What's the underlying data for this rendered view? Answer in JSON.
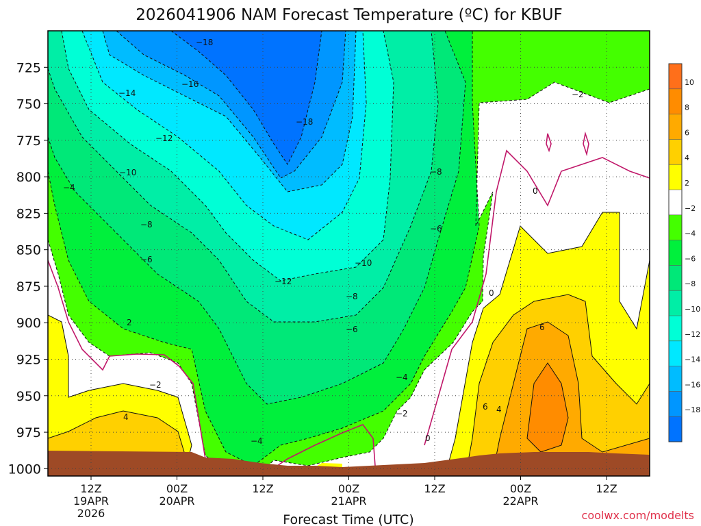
{
  "chart_data": {
    "type": "contour",
    "title": "2026041906 NAM Forecast Temperature (ºC) for KBUF",
    "xlabel": "Forecast Time (UTC)",
    "ylabel": "",
    "x_ticks": [
      {
        "label": "12Z",
        "sub": [
          "19APR",
          "2026"
        ]
      },
      {
        "label": "00Z",
        "sub": [
          "20APR"
        ]
      },
      {
        "label": "12Z",
        "sub": []
      },
      {
        "label": "00Z",
        "sub": [
          "21APR"
        ]
      },
      {
        "label": "12Z",
        "sub": []
      },
      {
        "label": "00Z",
        "sub": [
          "22APR"
        ]
      },
      {
        "label": "12Z",
        "sub": []
      }
    ],
    "y_ticks": [
      "725",
      "750",
      "775",
      "800",
      "825",
      "850",
      "875",
      "900",
      "925",
      "950",
      "975",
      "1000"
    ],
    "y_values": [
      725,
      750,
      775,
      800,
      825,
      850,
      875,
      900,
      925,
      950,
      975,
      1000
    ],
    "ylim": [
      700,
      1005
    ],
    "grid": true,
    "colorbar": {
      "ticks": [
        "10",
        "8",
        "6",
        "4",
        "2",
        "−2",
        "−4",
        "−6",
        "−8",
        "−10",
        "−12",
        "−14",
        "−16",
        "−18"
      ],
      "levels": [
        {
          "lo": 10,
          "hi": 12,
          "color": "#ff6f1a"
        },
        {
          "lo": 8,
          "hi": 10,
          "color": "#ff8c00"
        },
        {
          "lo": 6,
          "hi": 8,
          "color": "#ffaa00"
        },
        {
          "lo": 4,
          "hi": 6,
          "color": "#ffd000"
        },
        {
          "lo": 2,
          "hi": 4,
          "color": "#ffff00"
        },
        {
          "lo": -2,
          "hi": 2,
          "color": "#ffffff"
        },
        {
          "lo": -4,
          "hi": -2,
          "color": "#44ff00"
        },
        {
          "lo": -6,
          "hi": -4,
          "color": "#00f03c"
        },
        {
          "lo": -8,
          "hi": -6,
          "color": "#00e878"
        },
        {
          "lo": -10,
          "hi": -8,
          "color": "#00eea6"
        },
        {
          "lo": -12,
          "hi": -10,
          "color": "#00ffd6"
        },
        {
          "lo": -14,
          "hi": -12,
          "color": "#00e8ff"
        },
        {
          "lo": -16,
          "hi": -14,
          "color": "#00bcff"
        },
        {
          "lo": -18,
          "hi": -16,
          "color": "#0096ff"
        },
        {
          "lo": -20,
          "hi": -18,
          "color": "#0073ff"
        }
      ]
    },
    "contour_labels": [
      "−18",
      "−16",
      "−14",
      "−12",
      "−10",
      "−8",
      "−6",
      "−4",
      "−2",
      "0",
      "2",
      "4",
      "6"
    ],
    "colors": {
      "ground": "#9e4a26",
      "freezing_line": "#c0186a"
    }
  },
  "credit": "coolwx.com/modelts"
}
